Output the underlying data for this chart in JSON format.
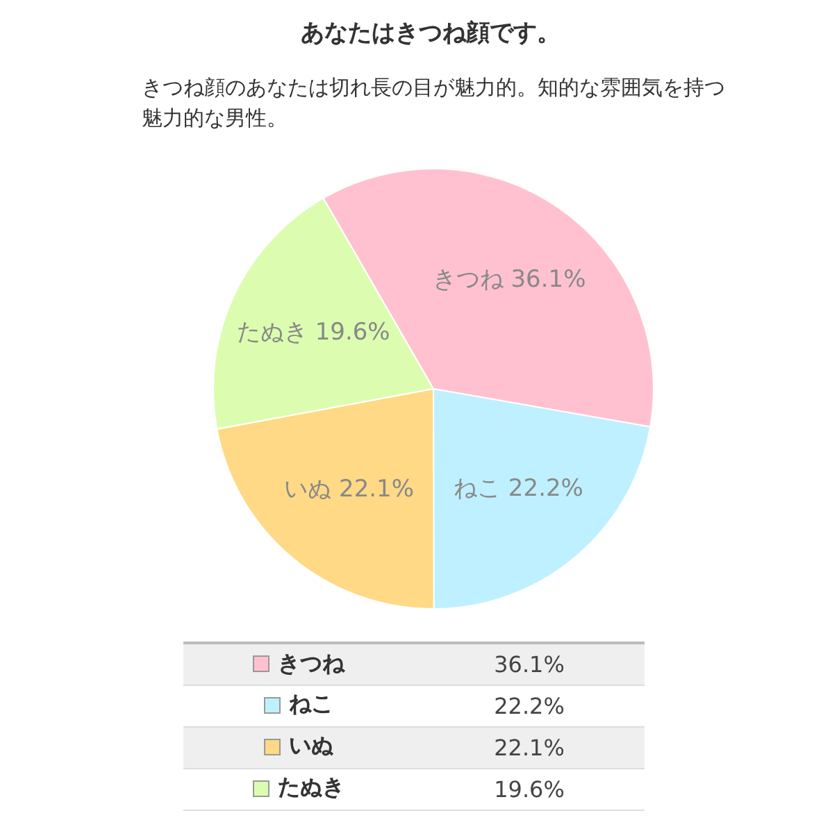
{
  "chart_data": {
    "type": "pie",
    "title": "あなたはきつね顔です。",
    "subtitle": "きつね顔のあなたは切れ長の目が魅力的。知的な雰囲気を持つ魅力的な男性。",
    "categories": [
      "きつね",
      "ねこ",
      "いぬ",
      "たぬき"
    ],
    "values": [
      36.1,
      22.2,
      22.1,
      19.6
    ],
    "value_labels": [
      "36.1%",
      "22.2%",
      "22.1%",
      "19.6%"
    ],
    "colors": [
      "#ffc1d0",
      "#bff0ff",
      "#ffd985",
      "#dcfdb0"
    ],
    "legend": "bottom"
  }
}
